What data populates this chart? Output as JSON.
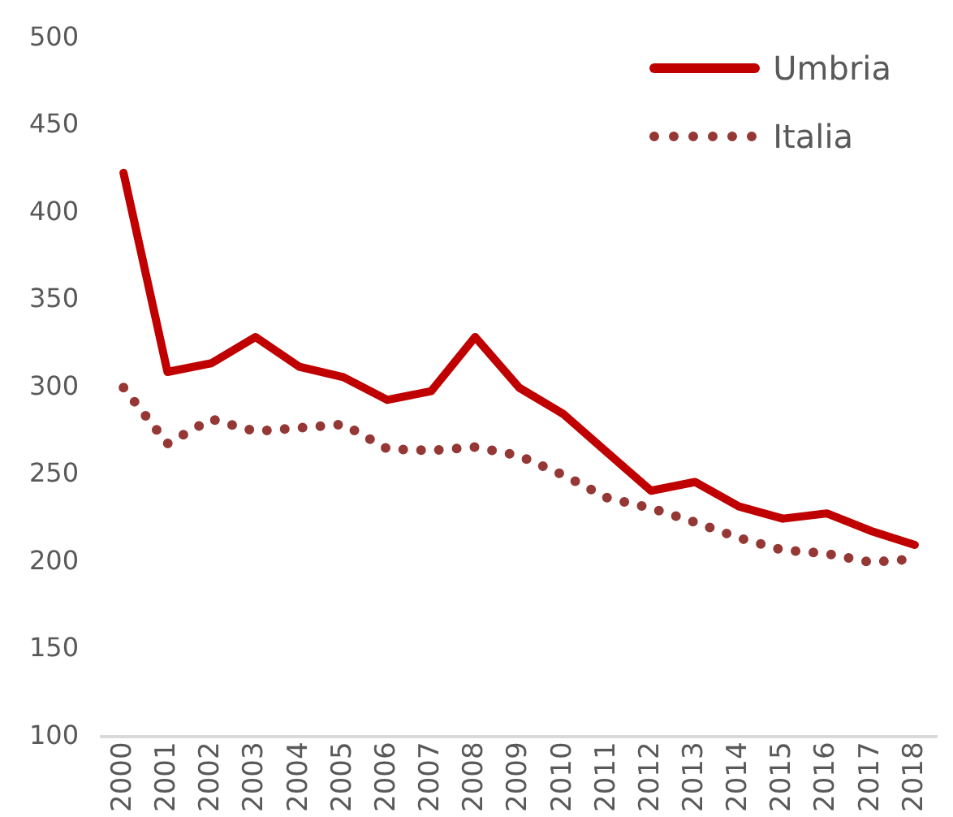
{
  "chart_data": {
    "type": "line",
    "categories": [
      "2000",
      "2001",
      "2002",
      "2003",
      "2004",
      "2005",
      "2006",
      "2007",
      "2008",
      "2009",
      "2010",
      "2011",
      "2012",
      "2013",
      "2014",
      "2015",
      "2016",
      "2017",
      "2018"
    ],
    "series": [
      {
        "name": "Umbria",
        "color": "#c00000",
        "line_style": "solid",
        "values": [
          423,
          309,
          314,
          329,
          312,
          306,
          293,
          298,
          329,
          300,
          285,
          263,
          241,
          246,
          232,
          225,
          228,
          218,
          210
        ]
      },
      {
        "name": "Italia",
        "color": "#953735",
        "line_style": "dotted",
        "values": [
          300,
          268,
          282,
          275,
          277,
          279,
          265,
          264,
          266,
          261,
          250,
          237,
          231,
          223,
          214,
          207,
          205,
          200,
          202
        ]
      }
    ],
    "ylim": [
      100,
      500
    ],
    "yticks": [
      100,
      150,
      200,
      250,
      300,
      350,
      400,
      450,
      500
    ],
    "grid": false,
    "legend": "top right",
    "marker": "none"
  }
}
